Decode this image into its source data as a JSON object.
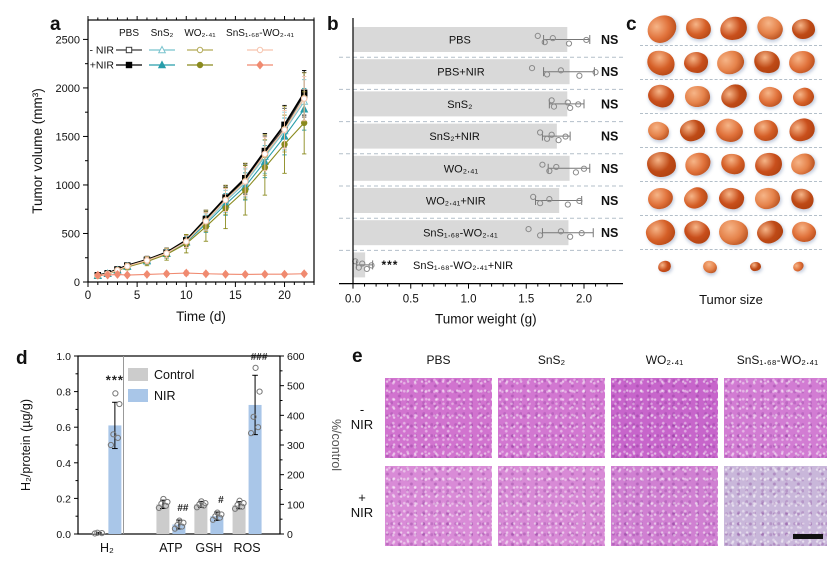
{
  "panels": {
    "a": {
      "label": "a"
    },
    "b": {
      "label": "b"
    },
    "c": {
      "label": "c",
      "caption": "Tumor size",
      "rows": [
        {
          "sizes": [
            30,
            25,
            27,
            26,
            23
          ]
        },
        {
          "sizes": [
            28,
            24,
            27,
            26,
            26
          ]
        },
        {
          "sizes": [
            26,
            25,
            26,
            23,
            21
          ]
        },
        {
          "sizes": [
            21,
            25,
            27,
            24,
            26
          ]
        },
        {
          "sizes": [
            29,
            26,
            24,
            27,
            24
          ]
        },
        {
          "sizes": [
            25,
            24,
            25,
            25,
            23
          ]
        },
        {
          "sizes": [
            29,
            26,
            29,
            26,
            24
          ]
        },
        {
          "sizes": [
            13,
            14,
            11,
            11
          ]
        }
      ],
      "palette": [
        "#e0713a",
        "#d55f27",
        "#c94f1c",
        "#e5824a",
        "#bf4a16"
      ]
    },
    "d": {
      "label": "d"
    },
    "e": {
      "label": "e",
      "col_headers": [
        "PBS",
        "SnS₂",
        "WO₂.₄₁",
        "SnS₁.₆₈-WO₂.₄₁"
      ],
      "row_labels": [
        {
          "sign": "-",
          "word": "NIR"
        },
        {
          "sign": "+",
          "word": "NIR"
        }
      ],
      "tile_colors": [
        [
          "#d173cf",
          "#d277d1",
          "#c765cb",
          "#d27cd3"
        ],
        [
          "#d98bd7",
          "#d88ad6",
          "#d080d2",
          "#c9b7da"
        ]
      ]
    }
  },
  "chart_data": [
    {
      "panel": "a",
      "type": "line",
      "xlabel": "Time (d)",
      "ylabel": "Tumor volume (mm³)",
      "xlim": [
        0,
        23
      ],
      "ylim": [
        0,
        2700
      ],
      "xticks": [
        0,
        5,
        10,
        15,
        20
      ],
      "yticks": [
        0,
        500,
        1000,
        1500,
        2000,
        2500
      ],
      "x": [
        1,
        2,
        3,
        4,
        6,
        8,
        10,
        12,
        14,
        16,
        18,
        20,
        22
      ],
      "legend": {
        "col_headers": [
          "PBS",
          "SnS₂",
          "WO₂.₄₁",
          "SnS₁.₆₈-WO₂.₄₁"
        ],
        "row_labels": [
          "- NIR",
          "+NIR"
        ]
      },
      "series": [
        {
          "name": "PBS -NIR",
          "color": "#3a3a3a",
          "marker": "square",
          "fill": "open",
          "values": [
            65,
            85,
            125,
            165,
            225,
            300,
            420,
            640,
            855,
            1055,
            1330,
            1590,
            1930
          ],
          "err": [
            15,
            15,
            20,
            25,
            35,
            45,
            60,
            90,
            120,
            150,
            175,
            200,
            230
          ]
        },
        {
          "name": "PBS +NIR",
          "color": "#000000",
          "marker": "square",
          "fill": "solid",
          "values": [
            70,
            90,
            130,
            170,
            230,
            305,
            430,
            650,
            870,
            1070,
            1350,
            1620,
            1950
          ],
          "err": [
            15,
            15,
            20,
            25,
            35,
            45,
            60,
            90,
            120,
            150,
            180,
            200,
            230
          ]
        },
        {
          "name": "SnS₂ -NIR",
          "color": "#79c3ce",
          "marker": "triangle",
          "fill": "open",
          "values": [
            65,
            85,
            122,
            160,
            220,
            295,
            415,
            620,
            830,
            1020,
            1290,
            1555,
            1860
          ],
          "err": [
            15,
            15,
            20,
            25,
            35,
            45,
            60,
            90,
            115,
            145,
            170,
            195,
            225
          ]
        },
        {
          "name": "SnS₂ +NIR",
          "color": "#279daa",
          "marker": "triangle",
          "fill": "solid",
          "values": [
            64,
            84,
            120,
            158,
            215,
            290,
            408,
            600,
            800,
            985,
            1240,
            1500,
            1780
          ],
          "err": [
            15,
            15,
            20,
            25,
            35,
            45,
            60,
            88,
            112,
            140,
            165,
            190,
            215
          ]
        },
        {
          "name": "WO₂.₄₁ -NIR",
          "color": "#b3aa58",
          "marker": "circle",
          "fill": "open",
          "values": [
            66,
            86,
            124,
            164,
            224,
            298,
            418,
            630,
            848,
            1040,
            1310,
            1575,
            1895
          ],
          "err": [
            15,
            15,
            20,
            28,
            38,
            50,
            70,
            110,
            150,
            185,
            210,
            235,
            260
          ]
        },
        {
          "name": "WO₂.₄₁ +NIR",
          "color": "#8a8a1e",
          "marker": "circle",
          "fill": "solid",
          "values": [
            62,
            82,
            118,
            155,
            210,
            285,
            395,
            570,
            760,
            945,
            1180,
            1420,
            1640
          ],
          "err": [
            15,
            15,
            22,
            30,
            42,
            60,
            95,
            150,
            210,
            255,
            285,
            300,
            320
          ]
        },
        {
          "name": "SnS₁.₆₈-WO₂.₄₁ -NIR",
          "color": "#f6c4ae",
          "marker": "circle",
          "fill": "open",
          "values": [
            65,
            85,
            122,
            162,
            222,
            296,
            416,
            625,
            845,
            1035,
            1320,
            1570,
            1890
          ],
          "err": [
            15,
            15,
            20,
            25,
            35,
            45,
            60,
            90,
            118,
            148,
            172,
            198,
            228
          ]
        },
        {
          "name": "SnS₁.₆₈-WO₂.₄₁ +NIR",
          "color": "#f08a70",
          "marker": "diamond",
          "fill": "solid",
          "values": [
            70,
            72,
            78,
            72,
            78,
            85,
            92,
            85,
            80,
            78,
            80,
            80,
            85
          ],
          "err": [
            10,
            10,
            12,
            12,
            15,
            18,
            22,
            18,
            15,
            15,
            15,
            15,
            18
          ]
        }
      ]
    },
    {
      "panel": "b",
      "type": "bar",
      "orientation": "horizontal",
      "xlabel": "Tumor weight (g)",
      "xlim": [
        0,
        2.3
      ],
      "xtick_labels": [
        "0.0",
        "0.5",
        "1.0",
        "1.5",
        "2.0"
      ],
      "bar_color": "#d9d9d9",
      "rows": [
        {
          "label": "PBS",
          "value": 1.85,
          "err": 0.2,
          "points": [
            1.6,
            1.66,
            1.73,
            1.87,
            2.02
          ],
          "sig": "NS"
        },
        {
          "label": "PBS+NIR",
          "value": 1.87,
          "err": 0.22,
          "points": [
            1.55,
            1.68,
            1.8,
            1.96,
            2.1
          ],
          "sig": "NS"
        },
        {
          "label": "SnS₂",
          "value": 1.85,
          "err": 0.15,
          "points": [
            1.72,
            1.74,
            1.86,
            1.88,
            1.95
          ],
          "sig": "NS"
        },
        {
          "label": "SnS₂+NIR",
          "value": 1.76,
          "err": 0.12,
          "points": [
            1.62,
            1.68,
            1.72,
            1.78,
            1.84
          ],
          "sig": "NS"
        },
        {
          "label": "WO₂.₄₁",
          "value": 1.87,
          "err": 0.18,
          "points": [
            1.64,
            1.7,
            1.76,
            1.93,
            2.0
          ],
          "sig": "NS"
        },
        {
          "label": "WO₂.₄₁+NIR",
          "value": 1.78,
          "err": 0.2,
          "points": [
            1.56,
            1.62,
            1.7,
            1.86,
            1.96
          ],
          "sig": "NS"
        },
        {
          "label": "SnS₁.₆₈-WO₂.₄₁",
          "value": 1.86,
          "err": 0.22,
          "points": [
            1.52,
            1.62,
            1.8,
            1.88,
            1.98
          ],
          "sig": "NS"
        },
        {
          "label": "SnS₁.₆₈-WO₂.₄₁+NIR",
          "value": 0.1,
          "err": 0.07,
          "points": [
            0.02,
            0.05,
            0.08,
            0.12,
            0.16
          ],
          "sig": "***",
          "label_outside": true
        }
      ]
    },
    {
      "panel": "d",
      "type": "bar",
      "grouped": true,
      "categories": [
        "H₂",
        "ATP",
        "GSH",
        "ROS"
      ],
      "axis_per_category": [
        "left",
        "right",
        "right",
        "right"
      ],
      "left_axis": {
        "label": "H₂/protein (µg/g)",
        "lim": [
          0,
          1.0
        ],
        "tick_labels": [
          "0.0",
          "0.2",
          "0.4",
          "0.6",
          "0.8",
          "1.0"
        ]
      },
      "right_axis": {
        "label": "%/control",
        "lim": [
          0,
          600
        ],
        "ticks": [
          0,
          100,
          200,
          300,
          400,
          500,
          600
        ]
      },
      "legend": [
        {
          "name": "Control",
          "color": "#cccccc"
        },
        {
          "name": "NIR",
          "color": "#a9c6e8"
        }
      ],
      "series": [
        {
          "name": "Control",
          "color": "#cccccc",
          "values": [
            0.005,
            100,
            100,
            97
          ],
          "err": [
            0.004,
            14,
            10,
            12
          ],
          "points": [
            [
              0.003,
              0.005,
              0.007
            ],
            [
              88,
              95,
              102,
              108,
              118
            ],
            [
              90,
              96,
              100,
              104,
              110
            ],
            [
              85,
              92,
              98,
              104,
              112
            ]
          ]
        },
        {
          "name": "NIR",
          "color": "#a9c6e8",
          "values": [
            0.61,
            32,
            60,
            435
          ],
          "err": [
            0.13,
            15,
            14,
            100
          ],
          "points": [
            [
              0.5,
              0.54,
              0.56,
              0.73,
              0.79
            ],
            [
              18,
              25,
              30,
              38,
              45
            ],
            [
              48,
              55,
              60,
              66,
              72
            ],
            [
              340,
              360,
              395,
              480,
              560
            ]
          ]
        }
      ],
      "sig": [
        "***",
        "##",
        "#",
        "###"
      ]
    }
  ]
}
